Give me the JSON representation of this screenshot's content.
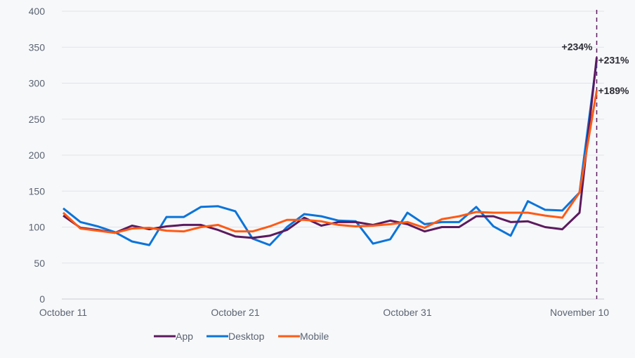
{
  "chart_data": {
    "type": "line",
    "title": "",
    "xlabel": "",
    "ylabel": "",
    "ylim": [
      0,
      400
    ],
    "yticks": [
      "0",
      "50",
      "100",
      "150",
      "200",
      "250",
      "300",
      "350",
      "400"
    ],
    "grid": true,
    "x_start_label": "October 11",
    "xtick_labels": [
      {
        "day": 0,
        "label": "October 11"
      },
      {
        "day": 10,
        "label": "October 21"
      },
      {
        "day": 20,
        "label": "October 31"
      },
      {
        "day": 30,
        "label": "November 10"
      }
    ],
    "marker_day": 31,
    "legend_position": "bottom",
    "series": [
      {
        "name": "App",
        "color": "#5c1a5e",
        "annotation": "+234%",
        "values": [
          116,
          99,
          96,
          92,
          102,
          97,
          101,
          103,
          103,
          96,
          87,
          85,
          88,
          96,
          113,
          102,
          107,
          107,
          103,
          109,
          104,
          94,
          100,
          100,
          115,
          115,
          107,
          108,
          100,
          97,
          120,
          336
        ]
      },
      {
        "name": "Desktop",
        "color": "#0a74da",
        "annotation": "+231%",
        "values": [
          126,
          107,
          101,
          93,
          80,
          75,
          114,
          114,
          128,
          129,
          122,
          84,
          75,
          100,
          118,
          115,
          109,
          108,
          77,
          83,
          120,
          104,
          107,
          107,
          128,
          101,
          88,
          136,
          124,
          123,
          148,
          332
        ]
      },
      {
        "name": "Mobile",
        "color": "#ff5a14",
        "annotation": "+189%",
        "values": [
          120,
          98,
          95,
          92,
          98,
          99,
          95,
          94,
          100,
          103,
          94,
          94,
          101,
          110,
          110,
          108,
          103,
          101,
          102,
          104,
          107,
          99,
          111,
          115,
          121,
          120,
          120,
          120,
          116,
          113,
          148,
          290
        ]
      }
    ]
  }
}
